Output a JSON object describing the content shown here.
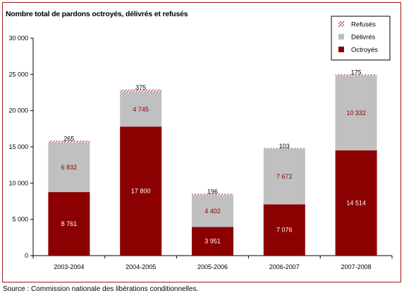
{
  "title": "Nombre total de pardons octroyés, délivrés et refusés",
  "source": "Source : Commission nationale des libérations conditionnelles.",
  "colors": {
    "octroyes": "#8b0000",
    "delivres": "#c0c0c0",
    "refuses_hatch": "#8b0000",
    "frame_border": "#a01818"
  },
  "chart_data": {
    "type": "bar",
    "stacked": true,
    "title": "Nombre total de pardons octroyés, délivrés et refusés",
    "categories": [
      "2003-2004",
      "2004-2005",
      "2005-2006",
      "2006-2007",
      "2007-2008"
    ],
    "series": [
      {
        "name": "Octroyés",
        "values": [
          8761,
          17800,
          3951,
          7076,
          14514
        ],
        "labels": [
          "8 761",
          "17 800",
          "3 951",
          "7 076",
          "14 514"
        ]
      },
      {
        "name": "Délivrés",
        "values": [
          6832,
          4745,
          4402,
          7672,
          10332
        ],
        "labels": [
          "6 832",
          "4 745",
          "4 402",
          "7 672",
          "10 332"
        ]
      },
      {
        "name": "Refusés",
        "values": [
          265,
          375,
          196,
          103,
          175
        ],
        "labels": [
          "265",
          "375",
          "196",
          "103",
          "175"
        ]
      }
    ],
    "y_ticks": [
      "0",
      "5 000",
      "10 000",
      "15 000",
      "20 000",
      "25 000",
      "30 000"
    ],
    "ylim": [
      0,
      30000
    ],
    "legend_order": [
      "Refusés",
      "Délivrés",
      "Octroyés"
    ],
    "legend_position": "top-right",
    "grid": false
  }
}
